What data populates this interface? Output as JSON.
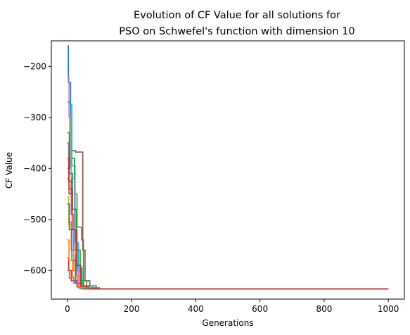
{
  "chart_data": {
    "type": "line",
    "title": [
      "Evolution of CF Value for all solutions for",
      "PSO on Schwefel's function with dimension 10"
    ],
    "xlabel": "Generations",
    "ylabel": "CF Value",
    "xlim": [
      -50,
      1050
    ],
    "ylim": [
      -656,
      -150
    ],
    "xticks": [
      0,
      200,
      400,
      600,
      800,
      1000
    ],
    "yticks": [
      -600,
      -500,
      -400,
      -300,
      -200
    ],
    "grid": false,
    "legend": "none",
    "colors": [
      "#1f77b4",
      "#ff7f0e",
      "#2ca02c",
      "#d62728",
      "#9467bd",
      "#8c564b",
      "#e377c2",
      "#7f7f7f",
      "#bcbd22",
      "#17becf"
    ],
    "final_value": -636,
    "series": [
      {
        "points": [
          [
            0,
            -160
          ],
          [
            3,
            -160
          ],
          [
            3,
            -232
          ],
          [
            10,
            -232
          ],
          [
            10,
            -300
          ],
          [
            14,
            -300
          ],
          [
            14,
            -380
          ],
          [
            22,
            -380
          ],
          [
            22,
            -520
          ],
          [
            30,
            -520
          ],
          [
            30,
            -600
          ],
          [
            44,
            -600
          ],
          [
            44,
            -630
          ],
          [
            80,
            -630
          ],
          [
            80,
            -636
          ],
          [
            1000,
            -636
          ]
        ]
      },
      {
        "points": [
          [
            0,
            -500
          ],
          [
            6,
            -500
          ],
          [
            6,
            -505
          ],
          [
            12,
            -505
          ],
          [
            12,
            -560
          ],
          [
            20,
            -560
          ],
          [
            20,
            -600
          ],
          [
            35,
            -600
          ],
          [
            35,
            -634
          ],
          [
            70,
            -634
          ],
          [
            70,
            -636
          ],
          [
            1000,
            -636
          ]
        ]
      },
      {
        "points": [
          [
            0,
            -400
          ],
          [
            8,
            -400
          ],
          [
            8,
            -300
          ],
          [
            14,
            -300
          ],
          [
            14,
            -380
          ],
          [
            22,
            -380
          ],
          [
            22,
            -450
          ],
          [
            30,
            -450
          ],
          [
            30,
            -515
          ],
          [
            44,
            -515
          ],
          [
            44,
            -540
          ],
          [
            50,
            -540
          ],
          [
            50,
            -630
          ],
          [
            90,
            -630
          ],
          [
            90,
            -636
          ],
          [
            1000,
            -636
          ]
        ]
      },
      {
        "points": [
          [
            0,
            -575
          ],
          [
            4,
            -575
          ],
          [
            4,
            -600
          ],
          [
            12,
            -600
          ],
          [
            12,
            -620
          ],
          [
            30,
            -620
          ],
          [
            30,
            -632
          ],
          [
            60,
            -632
          ],
          [
            60,
            -636
          ],
          [
            1000,
            -636
          ]
        ]
      },
      {
        "points": [
          [
            0,
            -350
          ],
          [
            4,
            -350
          ],
          [
            4,
            -425
          ],
          [
            12,
            -425
          ],
          [
            12,
            -490
          ],
          [
            20,
            -490
          ],
          [
            20,
            -560
          ],
          [
            30,
            -560
          ],
          [
            30,
            -610
          ],
          [
            45,
            -610
          ],
          [
            45,
            -634
          ],
          [
            80,
            -634
          ],
          [
            80,
            -636
          ],
          [
            1000,
            -636
          ]
        ]
      },
      {
        "points": [
          [
            0,
            -420
          ],
          [
            5,
            -420
          ],
          [
            5,
            -450
          ],
          [
            12,
            -450
          ],
          [
            12,
            -365
          ],
          [
            25,
            -365
          ],
          [
            25,
            -368
          ],
          [
            48,
            -368
          ],
          [
            48,
            -560
          ],
          [
            55,
            -560
          ],
          [
            55,
            -620
          ],
          [
            70,
            -620
          ],
          [
            70,
            -634
          ],
          [
            100,
            -634
          ],
          [
            100,
            -636
          ],
          [
            1000,
            -636
          ]
        ]
      },
      {
        "points": [
          [
            0,
            -220
          ],
          [
            5,
            -220
          ],
          [
            5,
            -300
          ],
          [
            12,
            -300
          ],
          [
            12,
            -420
          ],
          [
            22,
            -420
          ],
          [
            22,
            -560
          ],
          [
            35,
            -560
          ],
          [
            35,
            -630
          ],
          [
            75,
            -630
          ],
          [
            75,
            -636
          ],
          [
            1000,
            -636
          ]
        ]
      },
      {
        "points": [
          [
            0,
            -600
          ],
          [
            6,
            -600
          ],
          [
            6,
            -615
          ],
          [
            20,
            -615
          ],
          [
            20,
            -625
          ],
          [
            40,
            -625
          ],
          [
            40,
            -636
          ],
          [
            1000,
            -636
          ]
        ]
      },
      {
        "points": [
          [
            0,
            -455
          ],
          [
            4,
            -455
          ],
          [
            4,
            -510
          ],
          [
            14,
            -510
          ],
          [
            14,
            -570
          ],
          [
            25,
            -570
          ],
          [
            25,
            -610
          ],
          [
            40,
            -610
          ],
          [
            40,
            -634
          ],
          [
            70,
            -634
          ],
          [
            70,
            -636
          ],
          [
            1000,
            -636
          ]
        ]
      },
      {
        "points": [
          [
            0,
            -270
          ],
          [
            7,
            -270
          ],
          [
            7,
            -275
          ],
          [
            14,
            -275
          ],
          [
            14,
            -395
          ],
          [
            24,
            -395
          ],
          [
            24,
            -545
          ],
          [
            34,
            -545
          ],
          [
            34,
            -595
          ],
          [
            46,
            -595
          ],
          [
            46,
            -630
          ],
          [
            80,
            -630
          ],
          [
            80,
            -636
          ],
          [
            1000,
            -636
          ]
        ]
      },
      {
        "points": [
          [
            0,
            -470
          ],
          [
            6,
            -470
          ],
          [
            6,
            -520
          ],
          [
            14,
            -520
          ],
          [
            14,
            -580
          ],
          [
            26,
            -580
          ],
          [
            26,
            -625
          ],
          [
            50,
            -625
          ],
          [
            50,
            -636
          ],
          [
            1000,
            -636
          ]
        ]
      },
      {
        "points": [
          [
            0,
            -540
          ],
          [
            5,
            -540
          ],
          [
            5,
            -580
          ],
          [
            16,
            -580
          ],
          [
            16,
            -612
          ],
          [
            32,
            -612
          ],
          [
            32,
            -633
          ],
          [
            60,
            -633
          ],
          [
            60,
            -636
          ],
          [
            1000,
            -636
          ]
        ]
      },
      {
        "points": [
          [
            0,
            -330
          ],
          [
            6,
            -330
          ],
          [
            6,
            -410
          ],
          [
            16,
            -410
          ],
          [
            16,
            -480
          ],
          [
            28,
            -480
          ],
          [
            28,
            -560
          ],
          [
            40,
            -560
          ],
          [
            40,
            -620
          ],
          [
            60,
            -620
          ],
          [
            60,
            -636
          ],
          [
            1000,
            -636
          ]
        ]
      },
      {
        "points": [
          [
            0,
            -380
          ],
          [
            5,
            -380
          ],
          [
            5,
            -440
          ],
          [
            15,
            -440
          ],
          [
            15,
            -520
          ],
          [
            27,
            -520
          ],
          [
            27,
            -590
          ],
          [
            42,
            -590
          ],
          [
            42,
            -631
          ],
          [
            65,
            -631
          ],
          [
            65,
            -636
          ],
          [
            1000,
            -636
          ]
        ]
      }
    ]
  }
}
